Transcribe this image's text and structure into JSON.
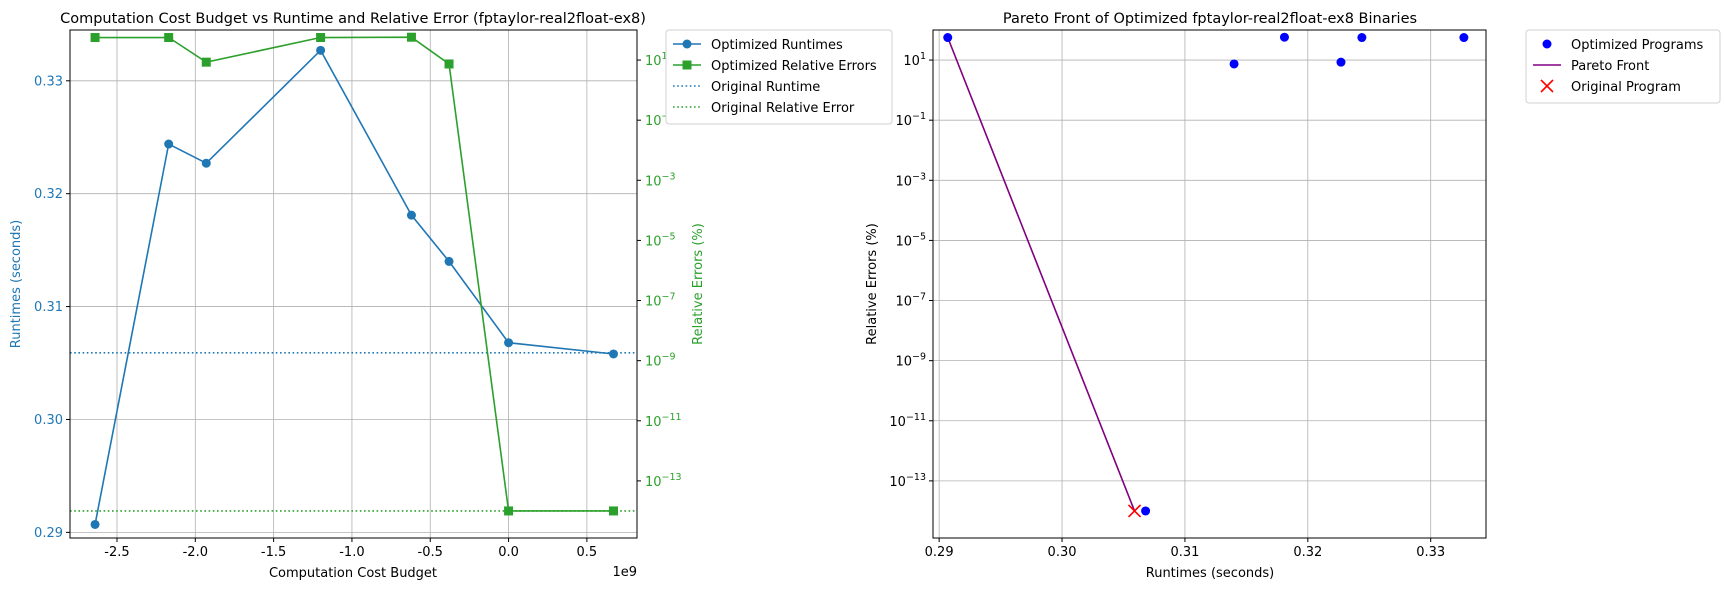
{
  "chart_data": [
    {
      "type": "line",
      "title": "Computation Cost Budget vs Runtime and Relative Error (fptaylor-real2float-ex8)",
      "xlabel": "Computation Cost Budget",
      "x_offset_text": "1e9",
      "ylabel_left": "Runtimes (seconds)",
      "ylabel_right": "Relative Errors (%)",
      "xlim": [
        -2.8,
        0.82
      ],
      "ylim_left": [
        0.2895,
        0.3345
      ],
      "ylim_right_log10": [
        -14.9,
        2.0
      ],
      "yscale_right": "log",
      "grid": true,
      "x_ticks": [
        "-2.5",
        "-2.0",
        "-1.5",
        "-1.0",
        "-0.5",
        "0.0",
        "0.5"
      ],
      "y_ticks_left": [
        "0.29",
        "0.30",
        "0.31",
        "0.32",
        "0.33"
      ],
      "y_ticks_right": [
        "1",
        "-1",
        "-3",
        "-5",
        "-7",
        "-9",
        "-11",
        "-13"
      ],
      "series": [
        {
          "name": "Optimized Runtimes",
          "axis": "left",
          "color": "#1f77b4",
          "marker": "circle",
          "x": [
            -2.64,
            -2.17,
            -1.93,
            -1.2,
            -0.62,
            -0.38,
            0.0,
            0.67
          ],
          "y": [
            0.2907,
            0.3244,
            0.3227,
            0.3327,
            0.3181,
            0.314,
            0.3068,
            0.3058
          ]
        },
        {
          "name": "Optimized Relative Errors",
          "axis": "right",
          "color": "#2ca02c",
          "marker": "square",
          "x": [
            -2.64,
            -2.17,
            -1.93,
            -1.2,
            -0.62,
            -0.38,
            0.0,
            0.67
          ],
          "y_log10": [
            1.75,
            1.75,
            0.93,
            1.75,
            1.76,
            0.87,
            -14.0,
            -14.0
          ]
        }
      ],
      "reference_lines": [
        {
          "name": "Original Runtime",
          "axis": "left",
          "value": 0.3059,
          "color": "#1f77b4",
          "style": "dotted"
        },
        {
          "name": "Original Relative Error",
          "axis": "right",
          "value_log10": -14.0,
          "color": "#2ca02c",
          "style": "dotted"
        }
      ],
      "legend": {
        "placement": "outside-upper-right"
      }
    },
    {
      "type": "scatter",
      "title": "Pareto Front of Optimized fptaylor-real2float-ex8 Binaries",
      "xlabel": "Runtimes (seconds)",
      "ylabel": "Relative Errors (%)",
      "xlim": [
        0.2895,
        0.3345
      ],
      "ylim_log10": [
        -14.9,
        2.0
      ],
      "yscale": "log",
      "grid": true,
      "x_ticks": [
        "0.29",
        "0.30",
        "0.31",
        "0.32",
        "0.33"
      ],
      "y_ticks": [
        "1",
        "-1",
        "-3",
        "-5",
        "-7",
        "-9",
        "-11",
        "-13"
      ],
      "series": [
        {
          "name": "Optimized Programs",
          "color": "#0000ff",
          "x": [
            0.2907,
            0.3068,
            0.314,
            0.3181,
            0.3227,
            0.3244,
            0.3327
          ],
          "y_log10": [
            1.75,
            -14.0,
            0.87,
            1.76,
            0.93,
            1.75,
            1.75
          ]
        },
        {
          "name": "Pareto Front",
          "color": "#800080",
          "x": [
            0.2907,
            0.3059
          ],
          "y_log10": [
            1.75,
            -14.0
          ]
        },
        {
          "name": "Original Program",
          "color": "#ff0000",
          "marker": "x",
          "x": [
            0.3059
          ],
          "y_log10": [
            -14.0
          ]
        }
      ],
      "legend": {
        "placement": "outside-upper-right"
      }
    }
  ]
}
